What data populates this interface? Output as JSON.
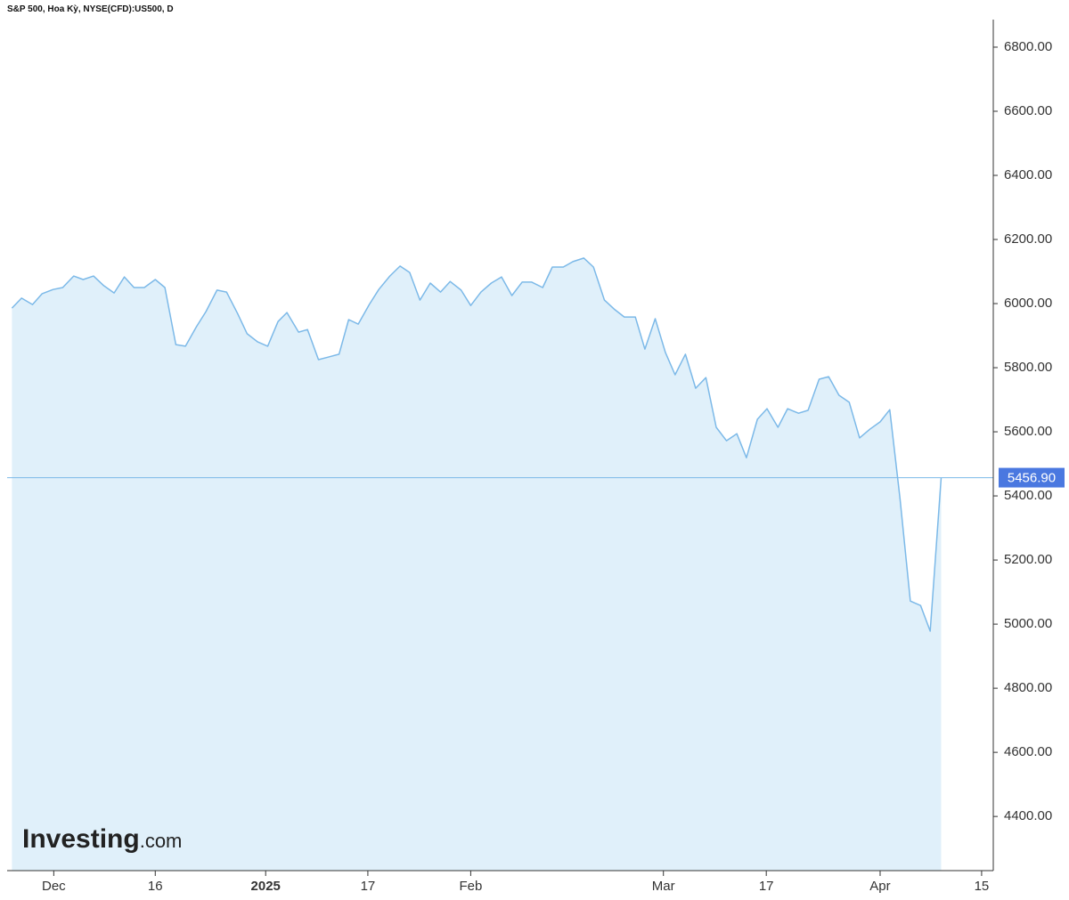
{
  "chart_data": {
    "type": "area",
    "title": "S&P 500, Hoa Kỳ, NYSE(CFD):US500, D",
    "logo": {
      "main": "Investing",
      "suffix": ".com"
    },
    "line_color": "#7cb9e8",
    "fill_color": "#e0f0fa",
    "x": [
      -6.1,
      -4.7,
      -3.1,
      -1.7,
      -0.1,
      1.3,
      2.9,
      4.3,
      5.8,
      7.3,
      8.8,
      10.3,
      11.7,
      13.2,
      14.8,
      16.2,
      17.8,
      19.2,
      20.8,
      22.2,
      23.8,
      25.2,
      26.8,
      28.2,
      29.7,
      31.2,
      32.7,
      34.0,
      35.7,
      37.0,
      38.6,
      40.0,
      41.6,
      43.0,
      44.4,
      46.0,
      47.4,
      49.0,
      50.5,
      51.9,
      53.4,
      54.9,
      56.4,
      57.8,
      59.4,
      60.8,
      62.3,
      63.8,
      65.3,
      66.8,
      68.3,
      69.7,
      71.3,
      72.7,
      74.3,
      75.7,
      77.3,
      78.7,
      80.3,
      81.7,
      83.2,
      84.8,
      86.2,
      87.7,
      89.2,
      90.6,
      92.1,
      93.6,
      95.1,
      96.6,
      98.1,
      99.6,
      101.0,
      102.6,
      104.0,
      105.6,
      107.0,
      108.6,
      110.0,
      111.6,
      113.0,
      114.5,
      116.0,
      117.5,
      119.0,
      120.5,
      121.9,
      123.4,
      124.9,
      126.4,
      127.8,
      129.4
    ],
    "values": [
      5986,
      6017,
      5997,
      6031,
      6044,
      6050,
      6086,
      6075,
      6086,
      6056,
      6033,
      6083,
      6050,
      6050,
      6075,
      6050,
      5872,
      5867,
      5928,
      5975,
      6042,
      6036,
      5969,
      5906,
      5881,
      5867,
      5944,
      5972,
      5911,
      5919,
      5825,
      5833,
      5842,
      5950,
      5936,
      5997,
      6044,
      6086,
      6117,
      6097,
      6011,
      6064,
      6036,
      6069,
      6042,
      5994,
      6036,
      6064,
      6083,
      6025,
      6067,
      6067,
      6050,
      6114,
      6114,
      6131,
      6142,
      6114,
      6011,
      5983,
      5958,
      5958,
      5858,
      5953,
      5847,
      5778,
      5842,
      5736,
      5769,
      5614,
      5572,
      5594,
      5519,
      5639,
      5672,
      5614,
      5672,
      5658,
      5667,
      5764,
      5772,
      5714,
      5692,
      5581,
      5608,
      5631,
      5669,
      5392,
      5072,
      5058,
      4978,
      5456.9
    ],
    "last_price": {
      "value": 5456.9,
      "label": "5456.90"
    },
    "xlim": [
      -6.8,
      137
    ],
    "xticks": [
      {
        "value": 0,
        "label": "Dec"
      },
      {
        "value": 14.8,
        "label": "16"
      },
      {
        "value": 30.9,
        "label": "2025"
      },
      {
        "value": 45.8,
        "label": "17"
      },
      {
        "value": 60.8,
        "label": "Feb"
      },
      {
        "value": 88.9,
        "label": "Mar"
      },
      {
        "value": 103.9,
        "label": "17"
      },
      {
        "value": 120.5,
        "label": "Apr"
      },
      {
        "value": 135.3,
        "label": "15"
      }
    ],
    "ylim": [
      4231,
      6886
    ],
    "yticks": [
      {
        "value": 4400,
        "label": "4400.00"
      },
      {
        "value": 4600,
        "label": "4600.00"
      },
      {
        "value": 4800,
        "label": "4800.00"
      },
      {
        "value": 5000,
        "label": "5000.00"
      },
      {
        "value": 5200,
        "label": "5200.00"
      },
      {
        "value": 5400,
        "label": "5400.00"
      },
      {
        "value": 5600,
        "label": "5600.00"
      },
      {
        "value": 5800,
        "label": "5800.00"
      },
      {
        "value": 6000,
        "label": "6000.00"
      },
      {
        "value": 6200,
        "label": "6200.00"
      },
      {
        "value": 6400,
        "label": "6400.00"
      },
      {
        "value": 6600,
        "label": "6600.00"
      },
      {
        "value": 6800,
        "label": "6800.00"
      }
    ]
  }
}
